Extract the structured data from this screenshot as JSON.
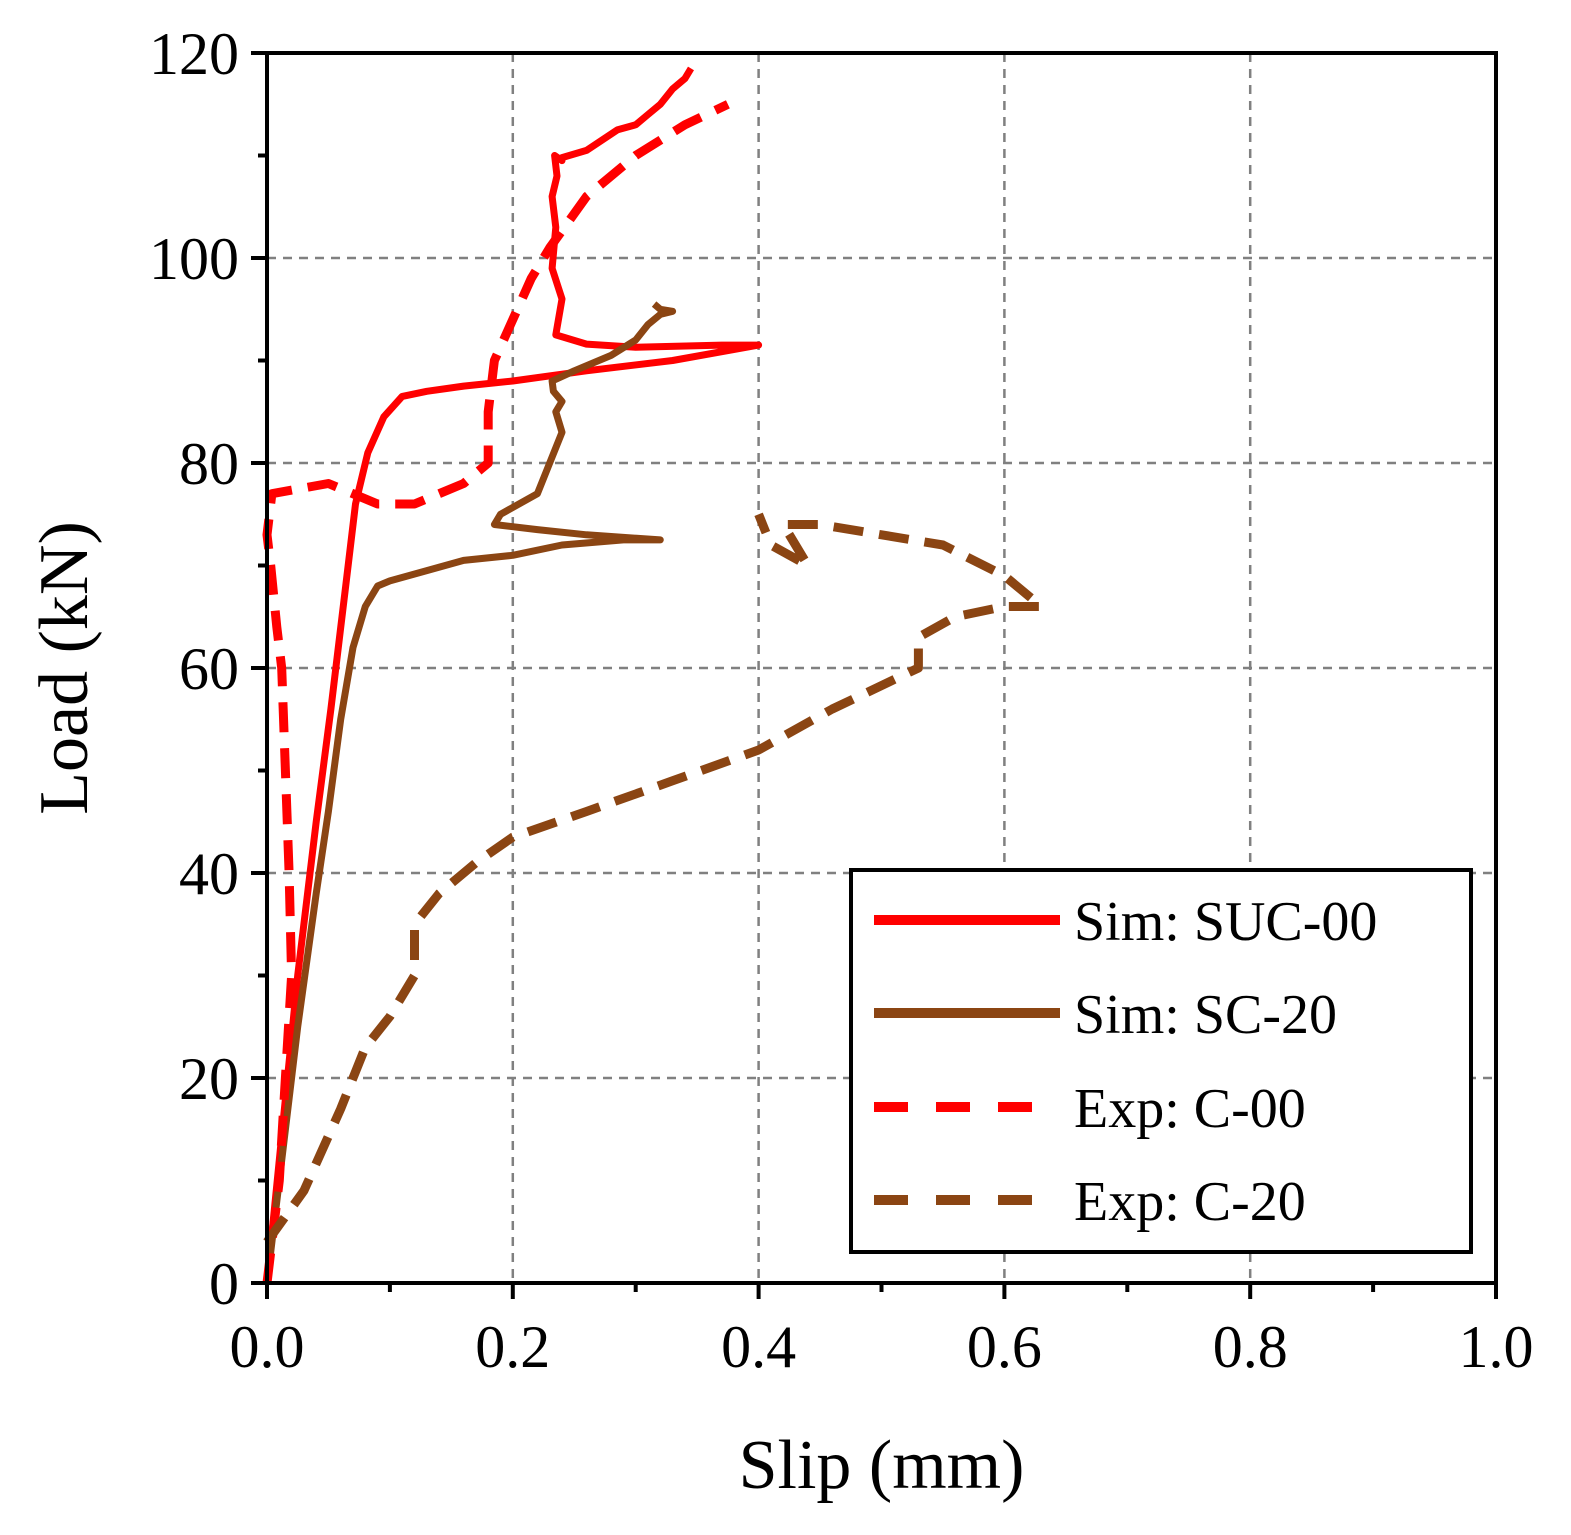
{
  "chart_data": {
    "type": "line",
    "title": "",
    "xlabel": "Slip (mm)",
    "ylabel": "Load (kN)",
    "xlim": [
      0,
      1.0
    ],
    "ylim": [
      0,
      120
    ],
    "x_ticks": [
      0.0,
      0.2,
      0.4,
      0.6,
      0.8,
      1.0
    ],
    "x_tick_labels": [
      "0.0",
      "0.2",
      "0.4",
      "0.6",
      "0.8",
      "1.0"
    ],
    "y_ticks": [
      0,
      20,
      40,
      60,
      80,
      100,
      120
    ],
    "y_tick_labels": [
      "0",
      "20",
      "40",
      "60",
      "80",
      "100",
      "120"
    ],
    "x_minor_step": 0.1,
    "y_minor_step": 10,
    "grid": true,
    "legend_position": "bottom-right",
    "series": [
      {
        "name": "Sim: SUC-00",
        "color": "#ff0000",
        "style": "solid",
        "x": [
          0.0,
          0.01,
          0.025,
          0.04,
          0.052,
          0.064,
          0.072,
          0.082,
          0.095,
          0.11,
          0.13,
          0.16,
          0.2,
          0.26,
          0.33,
          0.4,
          0.37,
          0.3,
          0.26,
          0.235,
          0.24,
          0.232,
          0.235,
          0.232,
          0.236,
          0.234,
          0.24,
          0.24,
          0.26,
          0.285,
          0.3,
          0.31,
          0.32,
          0.33,
          0.34,
          0.345
        ],
        "y": [
          0.0,
          12.0,
          30.0,
          45.0,
          56.0,
          68.0,
          76.0,
          81.0,
          84.5,
          86.5,
          87.0,
          87.5,
          88.0,
          89.0,
          90.0,
          91.5,
          91.5,
          91.3,
          91.6,
          92.5,
          96.0,
          99.0,
          103.0,
          106.0,
          108.0,
          110.0,
          109.5,
          109.8,
          110.5,
          112.5,
          113.0,
          114.0,
          115.0,
          116.5,
          117.5,
          118.5
        ]
      },
      {
        "name": "Sim: SC-20",
        "color": "#8b4513",
        "style": "solid",
        "x": [
          0.0,
          0.01,
          0.025,
          0.04,
          0.05,
          0.06,
          0.07,
          0.08,
          0.09,
          0.1,
          0.13,
          0.16,
          0.2,
          0.24,
          0.29,
          0.32,
          0.26,
          0.22,
          0.185,
          0.19,
          0.22,
          0.23,
          0.24,
          0.235,
          0.24,
          0.233,
          0.232,
          0.25,
          0.28,
          0.3,
          0.31,
          0.32,
          0.33,
          0.32,
          0.315
        ],
        "y": [
          0.0,
          10.0,
          25.0,
          38.0,
          46.0,
          55.0,
          62.0,
          66.0,
          68.0,
          68.5,
          69.5,
          70.5,
          71.0,
          72.0,
          72.5,
          72.5,
          73.0,
          73.5,
          74.0,
          75.0,
          77.0,
          80.0,
          83.0,
          85.0,
          86.0,
          87.0,
          88.0,
          89.0,
          90.5,
          92.0,
          93.5,
          94.5,
          94.8,
          95.0,
          95.5
        ]
      },
      {
        "name": "Exp: C-00",
        "color": "#ff0000",
        "style": "dashed",
        "x": [
          0.0,
          0.01,
          0.015,
          0.02,
          0.018,
          0.015,
          0.012,
          0.008,
          0.003,
          0.0,
          0.004,
          0.05,
          0.09,
          0.12,
          0.16,
          0.18,
          0.18,
          0.185,
          0.2,
          0.215,
          0.23,
          0.26,
          0.3,
          0.34,
          0.375
        ],
        "y": [
          0.0,
          10.0,
          20.0,
          30.0,
          40.0,
          50.0,
          60.0,
          64.0,
          70.0,
          73.0,
          77.0,
          78.0,
          76.0,
          76.0,
          78.0,
          80.0,
          85.0,
          90.0,
          94.0,
          98.0,
          101.0,
          106.0,
          110.0,
          113.0,
          115.0
        ]
      },
      {
        "name": "Exp: C-20",
        "color": "#8b4513",
        "style": "dashed",
        "x": [
          0.0,
          0.03,
          0.06,
          0.08,
          0.1,
          0.12,
          0.12,
          0.14,
          0.17,
          0.2,
          0.26,
          0.33,
          0.4,
          0.46,
          0.53,
          0.53,
          0.56,
          0.6,
          0.63,
          0.6,
          0.55,
          0.5,
          0.45,
          0.42,
          0.43,
          0.44,
          0.41,
          0.4
        ],
        "y": [
          4.0,
          9.0,
          17.0,
          23.0,
          26.0,
          30.0,
          35.0,
          38.0,
          41.0,
          43.5,
          46.0,
          49.0,
          52.0,
          56.0,
          60.0,
          63.0,
          65.0,
          66.0,
          66.0,
          69.0,
          72.0,
          73.0,
          74.0,
          74.0,
          72.0,
          70.0,
          72.0,
          75.0
        ]
      }
    ]
  }
}
